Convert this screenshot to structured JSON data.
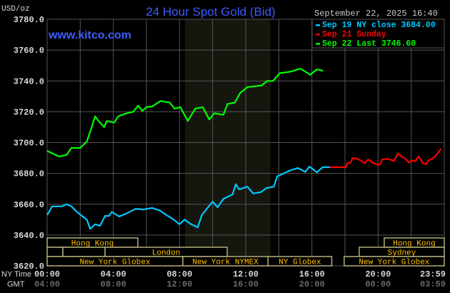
{
  "chart_data": {
    "type": "line",
    "title": "24 Hour Spot Gold (Bid)",
    "watermark": "www.kitco.com",
    "ylabel": "USD/oz",
    "timestamp": "September 22, 2025 16:40",
    "ylim": [
      3620,
      3780
    ],
    "yticks": [
      "3780.0",
      "3760.0",
      "3740.0",
      "3720.0",
      "3700.0",
      "3680.0",
      "3660.0",
      "3640.0",
      "3620.0"
    ],
    "xlim_hours": [
      0,
      24
    ],
    "x_row_labels": {
      "ny": "NY Time",
      "gmt": "GMT"
    },
    "xticks_ny": [
      "00:00",
      "04:00",
      "08:00",
      "12:00",
      "16:00",
      "20:00",
      "23:59"
    ],
    "xticks_gmt": [
      "04:00",
      "08:00",
      "12:00",
      "16:00",
      "20:00",
      "00:00",
      "03:59"
    ],
    "grid": true,
    "shaded_hours": [
      8.33,
      13.5
    ],
    "legend": {
      "placement": "top-right",
      "entries": [
        {
          "label": "Sep 19 NY close 3684.00",
          "color": "#00c8ff"
        },
        {
          "label": "Sep 21 Sunday",
          "color": "#ff0000"
        },
        {
          "label": "Sep 22 Last 3746.60",
          "color": "#00ff00"
        }
      ]
    },
    "series": [
      {
        "name": "Sep 19 NY close 3684.00",
        "color": "#00c8ff",
        "x": [
          0,
          0.3,
          0.9,
          1.17,
          1.47,
          1.8,
          2.1,
          2.4,
          2.6,
          2.9,
          3.2,
          3.5,
          3.75,
          3.9,
          4.35,
          4.8,
          5.35,
          5.8,
          6.35,
          6.8,
          7.2,
          7.65,
          8.0,
          8.3,
          8.7,
          9.1,
          9.35,
          10.0,
          10.3,
          10.65,
          11.2,
          11.4,
          11.6,
          12.1,
          12.45,
          12.9,
          13.25,
          13.7,
          13.9,
          14.3,
          14.7,
          15.15,
          15.6,
          15.85,
          16.3,
          16.65,
          17.1
        ],
        "y": [
          3653,
          3658.6,
          3658.6,
          3660,
          3658.6,
          3655,
          3652.4,
          3650,
          3644,
          3647,
          3646,
          3652.4,
          3652.4,
          3655,
          3652,
          3654,
          3657,
          3656.6,
          3657.5,
          3656,
          3653,
          3650,
          3647,
          3650,
          3647,
          3645,
          3653,
          3661.7,
          3658,
          3663.5,
          3666.3,
          3673,
          3669.6,
          3671.4,
          3667,
          3667.7,
          3670.5,
          3671.4,
          3678,
          3680,
          3682,
          3683.5,
          3681,
          3684.4,
          3680.7,
          3684,
          3684
        ]
      },
      {
        "name": "Sep 21 Sunday",
        "color": "#ff0000",
        "x": [
          17.1,
          18.05,
          18.15,
          18.35,
          18.45,
          18.75,
          19.0,
          19.2,
          19.4,
          19.7,
          19.95,
          20.1,
          20.25,
          20.6,
          20.95,
          21.2,
          21.4,
          21.6,
          21.85,
          22.05,
          22.25,
          22.45,
          22.7,
          22.9,
          23.05,
          23.4,
          23.6,
          23.8
        ],
        "y": [
          3684,
          3684,
          3686.7,
          3687,
          3690,
          3689.5,
          3688,
          3686.7,
          3689,
          3686.7,
          3685.8,
          3685.8,
          3689,
          3689.5,
          3688,
          3693,
          3691,
          3690,
          3687,
          3688.4,
          3688,
          3691,
          3686.7,
          3686,
          3688.4,
          3690.4,
          3693,
          3696
        ]
      },
      {
        "name": "Sep 22 Last 3746.60",
        "color": "#00ff00",
        "x": [
          0,
          0.7,
          1.17,
          1.47,
          2.0,
          2.4,
          2.6,
          2.9,
          3.1,
          3.45,
          3.6,
          4.05,
          4.3,
          4.8,
          5.2,
          5.5,
          5.75,
          6.0,
          6.35,
          6.85,
          7.4,
          7.7,
          8.05,
          8.5,
          8.95,
          9.4,
          9.8,
          10.1,
          10.65,
          10.9,
          11.35,
          11.65,
          12.1,
          12.95,
          13.3,
          13.65,
          14.05,
          14.7,
          15.3,
          15.9,
          16.3,
          16.67
        ],
        "y": [
          3694.6,
          3691,
          3692,
          3696.5,
          3696.5,
          3700.7,
          3707,
          3717,
          3714,
          3710,
          3714,
          3713,
          3717,
          3719,
          3720,
          3724,
          3720.6,
          3723,
          3723.4,
          3727,
          3726,
          3722,
          3723,
          3714,
          3722,
          3723,
          3715,
          3719,
          3718,
          3725,
          3726,
          3732,
          3736,
          3737,
          3740,
          3740,
          3745,
          3746,
          3748,
          3744,
          3747.5,
          3746.6
        ]
      }
    ],
    "sessions": [
      {
        "row": 0,
        "label": "Hong Kong",
        "start": 0,
        "end": 5.48
      },
      {
        "row": 0,
        "label": "Hong Kong",
        "start": 20.37,
        "end": 24
      },
      {
        "row": 1,
        "label": "",
        "start": 0,
        "end": 0.95
      },
      {
        "row": 1,
        "label": "",
        "start": 0.95,
        "end": 3.5
      },
      {
        "row": 1,
        "label": "London",
        "start": 3.5,
        "end": 10.88
      },
      {
        "row": 1,
        "label": "Sydney",
        "start": 18.86,
        "end": 24
      },
      {
        "row": 2,
        "label": "New York Globex",
        "start": 0,
        "end": 8.2
      },
      {
        "row": 2,
        "label": "New York NYMEX",
        "start": 8.2,
        "end": 13.35
      },
      {
        "row": 2,
        "label": "NY Globex",
        "start": 13.35,
        "end": 17.2
      },
      {
        "row": 2,
        "label": "New York Globex",
        "start": 17.95,
        "end": 24
      }
    ],
    "colors": {
      "title": "#3d5cff",
      "grid": "#555555",
      "shade": "#15170f",
      "session_border": "#b5ad7a",
      "session_text": "#ffc000",
      "axis_text": "#d8d8d8",
      "gmt_text": "#6a6a6a"
    }
  }
}
